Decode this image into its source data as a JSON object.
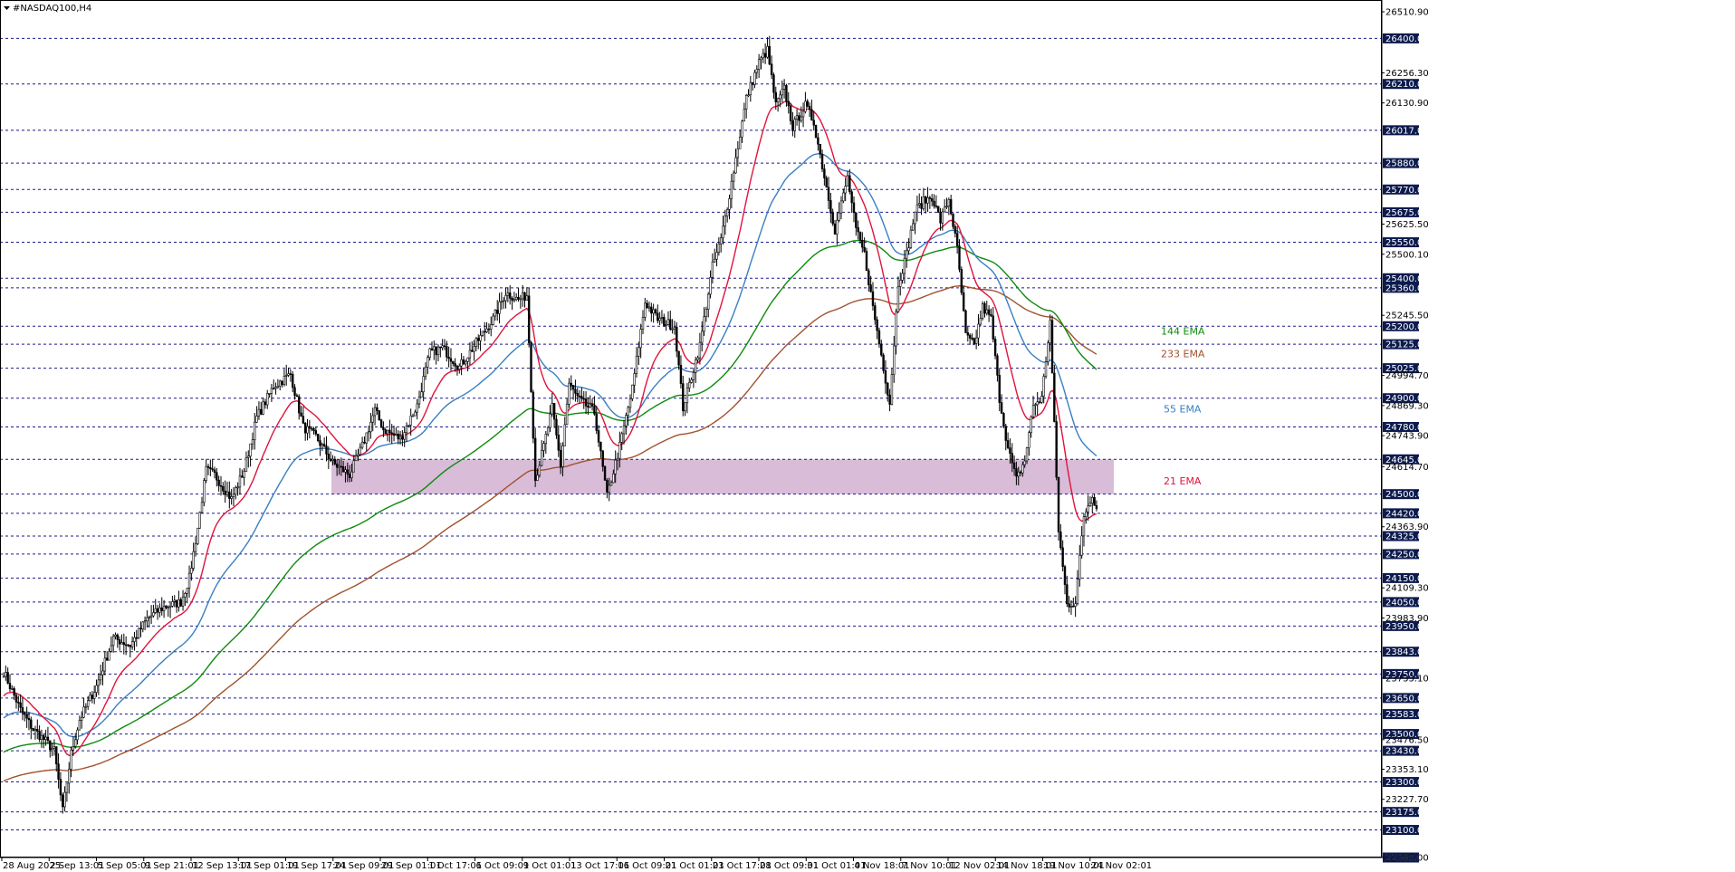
{
  "window": {
    "title": "#NASDAQ100,H4"
  },
  "colors": {
    "background": "#ffffff",
    "grid_dash": "#1a1a8c",
    "candle": "#000000",
    "zone_fill": "#d8bcd8",
    "price_label_bg": "#0c1a4d",
    "ema21": "#e0143c",
    "ema55": "#3a7fc1",
    "ema144": "#0f8a0f",
    "ema233": "#a0522d"
  },
  "chart_data": {
    "type": "candlestick",
    "symbol": "#NASDAQ100",
    "timeframe": "H4",
    "ylim": [
      22985,
      26560
    ],
    "x_ticks": [
      "28 Aug 2025",
      "2 Sep 13:01",
      "5 Sep 05:01",
      "9 Sep 21:01",
      "12 Sep 13:01",
      "17 Sep 01:01",
      "19 Sep 17:01",
      "24 Sep 09:01",
      "29 Sep 01:01",
      "1 Oct 17:01",
      "6 Oct 09:01",
      "9 Oct 01:01",
      "13 Oct 17:01",
      "16 Oct 09:01",
      "21 Oct 01:01",
      "23 Oct 17:01",
      "28 Oct 09:01",
      "31 Oct 01:01",
      "4 Nov 18:01",
      "7 Nov 10:01",
      "12 Nov 02:01",
      "14 Nov 18:01",
      "19 Nov 10:01",
      "24 Nov 02:01"
    ],
    "price_ticks": [
      "26510.90",
      "26256.30",
      "26130.90",
      "25625.50",
      "25500.10",
      "25245.50",
      "24994.70",
      "24869.30",
      "24743.90",
      "24614.70",
      "24363.90",
      "24109.30",
      "23983.90",
      "23733.10",
      "23476.50",
      "23353.10",
      "23227.70",
      "22985.00"
    ],
    "horizontal_levels": [
      "26400.00",
      "26210.00",
      "26017.00",
      "25880.00",
      "25770.00",
      "25675.00",
      "25550.00",
      "25400.00",
      "25360.00",
      "25200.00",
      "25125.00",
      "25025.00",
      "24900.00",
      "24780.00",
      "24645.00",
      "24500.00",
      "24420.00",
      "24325.00",
      "24250.00",
      "24150.00",
      "24050.00",
      "23950.00",
      "23843.00",
      "23750.00",
      "23650.00",
      "23583.00",
      "23500.00",
      "23430.00",
      "23300.00",
      "23175.00",
      "23100.00",
      "22985.00"
    ],
    "zone": {
      "top": 24645,
      "bottom": 24500
    },
    "ema_labels": [
      {
        "name": "144 EMA",
        "value": 25180
      },
      {
        "name": "233 EMA",
        "value": 25085
      },
      {
        "name": "55 EMA",
        "value": 24855
      },
      {
        "name": "21 EMA",
        "value": 24555
      }
    ],
    "price_anchors": [
      [
        0,
        23760
      ],
      [
        8,
        23600
      ],
      [
        14,
        23520
      ],
      [
        20,
        23470
      ],
      [
        24,
        23430
      ],
      [
        28,
        23180
      ],
      [
        32,
        23420
      ],
      [
        36,
        23560
      ],
      [
        44,
        23700
      ],
      [
        52,
        23900
      ],
      [
        60,
        23870
      ],
      [
        68,
        23980
      ],
      [
        76,
        24030
      ],
      [
        84,
        24050
      ],
      [
        88,
        24150
      ],
      [
        92,
        24360
      ],
      [
        96,
        24600
      ],
      [
        100,
        24580
      ],
      [
        108,
        24480
      ],
      [
        114,
        24600
      ],
      [
        120,
        24820
      ],
      [
        128,
        24950
      ],
      [
        136,
        25000
      ],
      [
        142,
        24780
      ],
      [
        148,
        24740
      ],
      [
        156,
        24630
      ],
      [
        164,
        24580
      ],
      [
        170,
        24700
      ],
      [
        176,
        24850
      ],
      [
        180,
        24770
      ],
      [
        188,
        24730
      ],
      [
        196,
        24870
      ],
      [
        202,
        25090
      ],
      [
        208,
        25110
      ],
      [
        216,
        25030
      ],
      [
        224,
        25130
      ],
      [
        232,
        25230
      ],
      [
        238,
        25340
      ],
      [
        244,
        25310
      ],
      [
        248,
        25330
      ],
      [
        252,
        24560
      ],
      [
        256,
        24700
      ],
      [
        260,
        24860
      ],
      [
        264,
        24620
      ],
      [
        268,
        24960
      ],
      [
        272,
        24900
      ],
      [
        280,
        24840
      ],
      [
        286,
        24490
      ],
      [
        292,
        24700
      ],
      [
        298,
        24940
      ],
      [
        304,
        25300
      ],
      [
        310,
        25230
      ],
      [
        318,
        25200
      ],
      [
        322,
        24860
      ],
      [
        330,
        25120
      ],
      [
        336,
        25450
      ],
      [
        340,
        25560
      ],
      [
        344,
        25750
      ],
      [
        348,
        25950
      ],
      [
        352,
        26150
      ],
      [
        358,
        26300
      ],
      [
        362,
        26350
      ],
      [
        366,
        26120
      ],
      [
        370,
        26190
      ],
      [
        374,
        26030
      ],
      [
        380,
        26120
      ],
      [
        384,
        26050
      ],
      [
        390,
        25780
      ],
      [
        394,
        25600
      ],
      [
        400,
        25820
      ],
      [
        404,
        25600
      ],
      [
        408,
        25500
      ],
      [
        412,
        25280
      ],
      [
        416,
        25080
      ],
      [
        420,
        24880
      ],
      [
        424,
        25380
      ],
      [
        428,
        25500
      ],
      [
        432,
        25680
      ],
      [
        436,
        25720
      ],
      [
        440,
        25740
      ],
      [
        444,
        25640
      ],
      [
        448,
        25730
      ],
      [
        452,
        25520
      ],
      [
        456,
        25160
      ],
      [
        460,
        25120
      ],
      [
        464,
        25280
      ],
      [
        468,
        25230
      ],
      [
        472,
        24900
      ],
      [
        476,
        24690
      ],
      [
        480,
        24560
      ],
      [
        484,
        24640
      ],
      [
        488,
        24870
      ],
      [
        492,
        24900
      ],
      [
        496,
        25220
      ],
      [
        500,
        24350
      ],
      [
        504,
        24040
      ],
      [
        508,
        24050
      ],
      [
        512,
        24410
      ],
      [
        516,
        24500
      ],
      [
        518,
        24440
      ]
    ]
  }
}
